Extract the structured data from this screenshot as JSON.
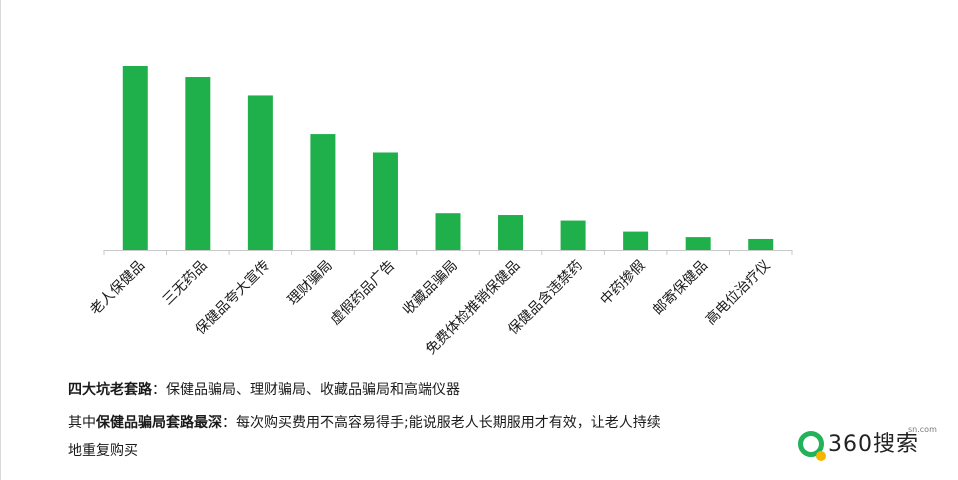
{
  "chart_data": {
    "type": "bar",
    "categories": [
      "老人保健品",
      "三无药品",
      "保健品夸大宣传",
      "理财骗局",
      "虚假药品广告",
      "收藏品骗局",
      "免费体检推销保健品",
      "保健品含违禁药",
      "中药掺假",
      "邮寄保健品",
      "高电位治疗仪"
    ],
    "values": [
      100,
      94,
      84,
      63,
      53,
      20,
      19,
      16,
      10,
      7,
      6
    ],
    "ylim": [
      0,
      100
    ],
    "bar_color": "#1fb04b",
    "axis_color": "#c8c8c8",
    "grid": false,
    "legend": "none",
    "title": "",
    "xlabel": "",
    "ylabel": ""
  },
  "captions": {
    "line1_bold": "四大坑老套路",
    "line1_rest": "：保健品骗局、理财骗局、收藏品骗局和高端仪器",
    "line2_pre": "其中",
    "line2_bold": "保健品骗局套路最深",
    "line2_rest": "：每次购买费用不高容易得手;能说服老人长期服用才有效，让老人持续",
    "line3": "地重复购买"
  },
  "logo": {
    "text": "360搜索",
    "small": "sn.com",
    "ring_color": "#22b35a",
    "dot_color": "#f5b400"
  }
}
